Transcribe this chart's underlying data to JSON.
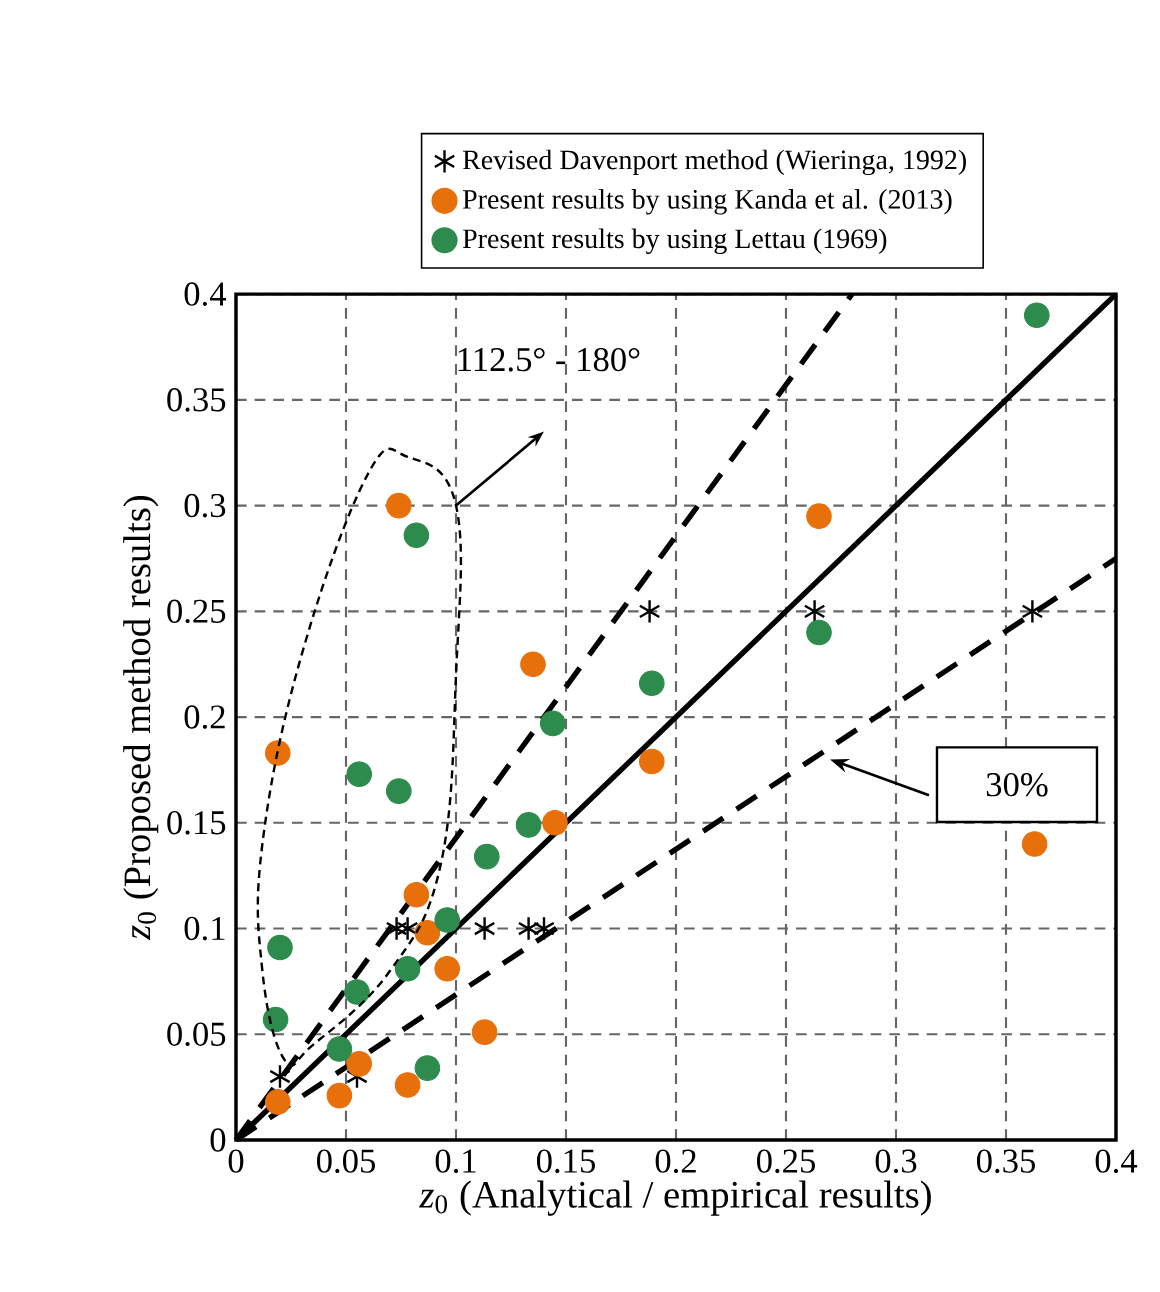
{
  "chart_data": {
    "type": "scatter",
    "xlabel": "*z*$_{0}$ (Analytical / empirical results)",
    "ylabel": "*z*$_{0}$ (Proposed method results)",
    "xlim": [
      0,
      0.4
    ],
    "ylim": [
      0,
      0.4
    ],
    "xticks": [
      {
        "value": 0,
        "label": "0"
      },
      0.05,
      0.1,
      0.15,
      0.2,
      0.25,
      0.3,
      0.35,
      0.4
    ],
    "yticks": [
      {
        "value": 0,
        "label": "0"
      },
      0.05,
      0.1,
      0.15,
      0.2,
      0.25,
      0.3,
      0.35,
      0.4
    ],
    "grid": true,
    "legend": "top",
    "annotations": [
      "112.5° - 180°",
      "30%"
    ],
    "series": [
      {
        "name": "Revised Davenport method (Wieringa, 1992)",
        "marker": "cross",
        "color": "#000000",
        "x": [
          0.02,
          0.055,
          0.073,
          0.078,
          0.113,
          0.133,
          0.14,
          0.188,
          0.263,
          0.362
        ],
        "values": [
          0.03,
          0.03,
          0.1,
          0.1,
          0.1,
          0.1,
          0.1,
          0.25,
          0.25,
          0.25
        ]
      },
      {
        "name": "Present results by using Kanda et al. (2013)",
        "marker": "circle",
        "color": "#e8700a",
        "x": [
          0.074,
          0.019,
          0.135,
          0.265,
          0.189,
          0.145,
          0.082,
          0.087,
          0.096,
          0.113,
          0.056,
          0.047,
          0.078,
          0.019,
          0.363
        ],
        "values": [
          0.3,
          0.183,
          0.225,
          0.295,
          0.179,
          0.15,
          0.116,
          0.098,
          0.081,
          0.051,
          0.036,
          0.021,
          0.026,
          0.018,
          0.14
        ]
      },
      {
        "name": "Present results by using Lettau (1969)",
        "marker": "circle",
        "color": "#2e8b4e",
        "x": [
          0.364,
          0.082,
          0.189,
          0.265,
          0.144,
          0.056,
          0.074,
          0.133,
          0.114,
          0.096,
          0.02,
          0.078,
          0.055,
          0.018,
          0.047,
          0.087
        ],
        "values": [
          0.39,
          0.286,
          0.216,
          0.24,
          0.197,
          0.173,
          0.165,
          0.149,
          0.134,
          0.104,
          0.091,
          0.081,
          0.07,
          0.057,
          0.043,
          0.034
        ]
      },
      {
        "type": "line",
        "line_style": "solid",
        "marker": "none",
        "color": "#000000",
        "x": [
          0,
          0.4
        ],
        "values": [
          0,
          0.4
        ]
      },
      {
        "type": "line",
        "line_style": "dashed",
        "marker": "none",
        "color": "#000000",
        "x": [
          0,
          0.28
        ],
        "values": [
          0,
          0.4
        ]
      },
      {
        "type": "line",
        "line_style": "dashed",
        "marker": "none",
        "color": "#000000",
        "x": [
          0,
          0.4
        ],
        "values": [
          0,
          0.275
        ]
      }
    ]
  }
}
